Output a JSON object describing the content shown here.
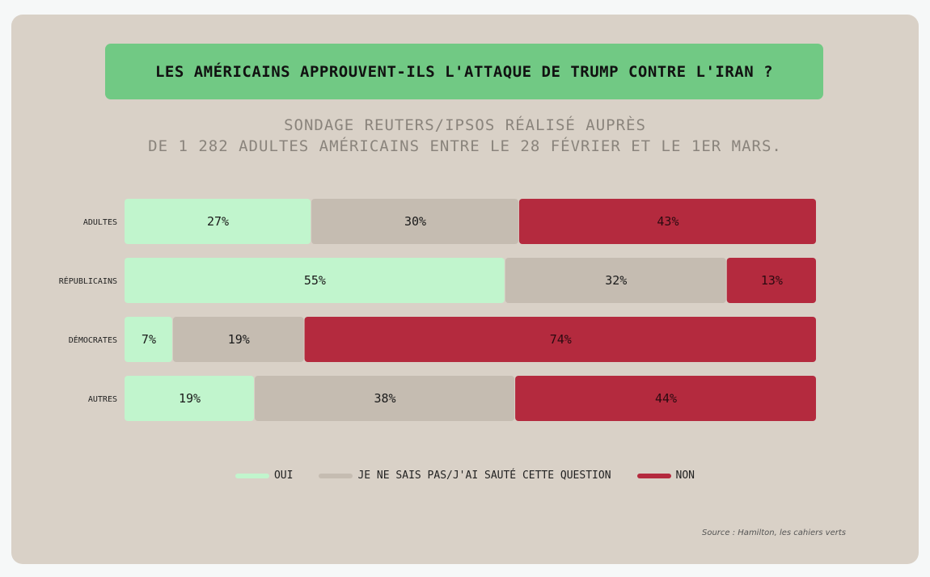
{
  "colors": {
    "oui": "#c1f5cd",
    "nsp": "#c5bcb1",
    "non": "#b42a3e",
    "title_bg": "#71c984",
    "card_bg": "#d9d1c7"
  },
  "chart_data": {
    "type": "bar",
    "orientation": "horizontal",
    "stacked": true,
    "normalized": true,
    "title": "LES AMÉRICAINS APPROUVENT-ILS L'ATTAQUE DE TRUMP CONTRE L'IRAN ?",
    "subtitle": [
      "SONDAGE REUTERS/IPSOS RÉALISÉ AUPRÈS",
      "DE 1 282 ADULTES AMÉRICAINS ENTRE LE 28 FÉVRIER ET LE 1ER MARS."
    ],
    "categories": [
      "ADULTES",
      "RÉPUBLICAINS",
      "DÉMOCRATES",
      "AUTRES"
    ],
    "series": [
      {
        "name": "OUI",
        "values": [
          27,
          55,
          7,
          19
        ]
      },
      {
        "name": "JE NE SAIS PAS/J'AI SAUTÉ CETTE QUESTION",
        "values": [
          30,
          32,
          19,
          38
        ]
      },
      {
        "name": "NON",
        "values": [
          43,
          13,
          74,
          44
        ]
      }
    ],
    "value_suffix": "%",
    "legend_position": "bottom",
    "grid": false,
    "source": "Source : Hamilton, les cahiers verts"
  }
}
